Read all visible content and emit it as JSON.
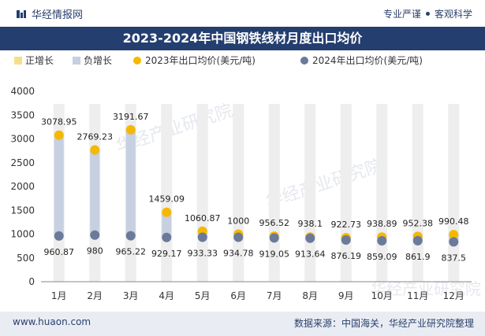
{
  "header": {
    "brand": "华经情报网",
    "tag1": "专业严谨",
    "tag2": "客观科学"
  },
  "footer": {
    "website": "www.huaon.com",
    "source": "数据来源：中国海关，华经产业研究院整理"
  },
  "watermark": "华经产业研究院",
  "colors": {
    "title_bg": "#243e6f",
    "series_2023": "#f5b800",
    "series_2024": "#6b7a9a",
    "bar_neg": "#c6d0e0",
    "bar_pos": "#f5e08a"
  },
  "chart_data": {
    "type": "line",
    "title": "2023-2024年中国钢铁线材月度出口均价",
    "categories": [
      "1月",
      "2月",
      "3月",
      "4月",
      "5月",
      "6月",
      "7月",
      "8月",
      "9月",
      "10月",
      "11月",
      "12月"
    ],
    "legend": [
      "正增长",
      "负增长",
      "2023年出口均价(美元/吨)",
      "2024年出口均价(美元/吨)"
    ],
    "legend_position": "top",
    "series": [
      {
        "name": "2023年出口均价(美元/吨)",
        "values": [
          3078.95,
          2769.23,
          3191.67,
          1459.09,
          1060.87,
          1000,
          956.52,
          938.1,
          922.73,
          938.89,
          952.38,
          990.48
        ]
      },
      {
        "name": "2024年出口均价(美元/吨)",
        "values": [
          960.87,
          980,
          965.22,
          929.17,
          933.33,
          934.78,
          919.05,
          913.64,
          876.19,
          859.09,
          861.9,
          837.5
        ]
      }
    ],
    "value_labels_2023": [
      "3078.95",
      "2769.23",
      "3191.67",
      "1459.09",
      "1060.87",
      "1000",
      "956.52",
      "938.1",
      "922.73",
      "938.89",
      "952.38",
      "990.48"
    ],
    "value_labels_2024": [
      "960.87",
      "980",
      "965.22",
      "929.17",
      "933.33",
      "934.78",
      "919.05",
      "913.64",
      "876.19",
      "859.09",
      "861.9",
      "837.5"
    ],
    "ylim": [
      0,
      4000
    ],
    "yticks": [
      "0",
      "500",
      "1000",
      "1500",
      "2000",
      "2500",
      "3000",
      "3500",
      "4000"
    ],
    "grid": false
  }
}
